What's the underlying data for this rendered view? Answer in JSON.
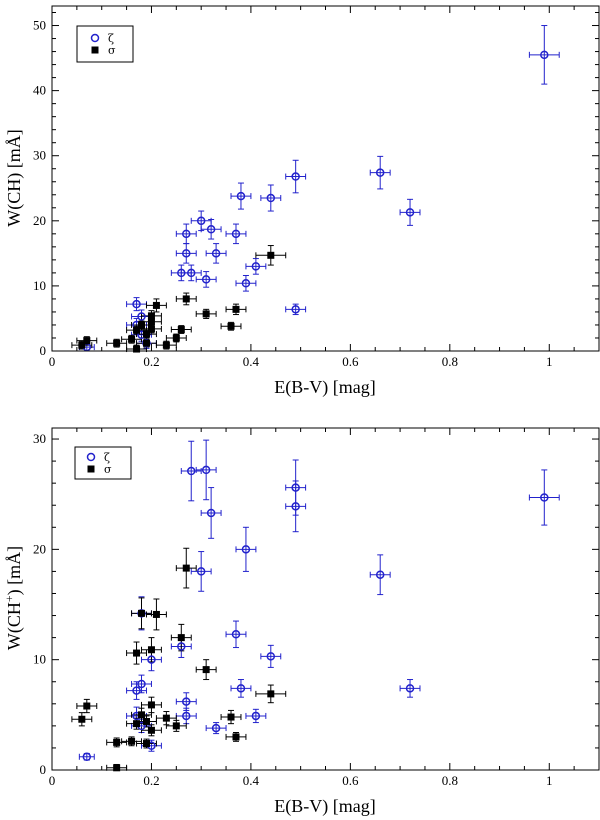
{
  "chart_data": [
    {
      "type": "scatter",
      "xlabel": "E(B-V) [mag]",
      "ylabel_main": "W(CH) [m",
      "ylabel_unit": "Å",
      "ylabel_sup": "",
      "ylabel_tail": "]",
      "xlim": [
        0,
        1.1
      ],
      "ylim": [
        0,
        53
      ],
      "xticks": [
        0,
        0.2,
        0.4,
        0.6,
        0.8,
        1.0
      ],
      "xtick_labels": [
        "0",
        "0.2",
        "0.4",
        "0.6",
        "0.8",
        "1"
      ],
      "yticks": [
        0,
        10,
        20,
        30,
        40,
        50
      ],
      "ytick_labels": [
        "0",
        "10",
        "20",
        "30",
        "40",
        "50"
      ],
      "legend_position": "top-left",
      "series": [
        {
          "name": "ζ",
          "marker": "open-circle",
          "color": "#2222cc",
          "points": [
            {
              "x": 0.07,
              "y": 0.6,
              "xerr": 0.015,
              "yerr": 0.6
            },
            {
              "x": 0.17,
              "y": 7.2,
              "xerr": 0.02,
              "yerr": 1.0
            },
            {
              "x": 0.17,
              "y": 4.0,
              "xerr": 0.02,
              "yerr": 1.0
            },
            {
              "x": 0.18,
              "y": 5.3,
              "xerr": 0.02,
              "yerr": 1.0
            },
            {
              "x": 0.18,
              "y": 2.5,
              "xerr": 0.02,
              "yerr": 1.0
            },
            {
              "x": 0.19,
              "y": 1.2,
              "xerr": 0.02,
              "yerr": 0.8
            },
            {
              "x": 0.26,
              "y": 12.0,
              "xerr": 0.02,
              "yerr": 1.2
            },
            {
              "x": 0.27,
              "y": 18.0,
              "xerr": 0.02,
              "yerr": 1.5
            },
            {
              "x": 0.27,
              "y": 15.0,
              "xerr": 0.02,
              "yerr": 1.5
            },
            {
              "x": 0.28,
              "y": 12.0,
              "xerr": 0.02,
              "yerr": 1.2
            },
            {
              "x": 0.3,
              "y": 20.0,
              "xerr": 0.02,
              "yerr": 1.5
            },
            {
              "x": 0.31,
              "y": 11.0,
              "xerr": 0.02,
              "yerr": 1.2
            },
            {
              "x": 0.32,
              "y": 18.7,
              "xerr": 0.02,
              "yerr": 1.5
            },
            {
              "x": 0.33,
              "y": 15.0,
              "xerr": 0.02,
              "yerr": 1.5
            },
            {
              "x": 0.37,
              "y": 18.0,
              "xerr": 0.02,
              "yerr": 1.5
            },
            {
              "x": 0.38,
              "y": 23.8,
              "xerr": 0.02,
              "yerr": 2.0
            },
            {
              "x": 0.39,
              "y": 10.4,
              "xerr": 0.02,
              "yerr": 1.2
            },
            {
              "x": 0.41,
              "y": 13.0,
              "xerr": 0.02,
              "yerr": 1.2
            },
            {
              "x": 0.44,
              "y": 23.5,
              "xerr": 0.02,
              "yerr": 2.0
            },
            {
              "x": 0.49,
              "y": 26.8,
              "xerr": 0.02,
              "yerr": 2.5
            },
            {
              "x": 0.49,
              "y": 6.4,
              "xerr": 0.02,
              "yerr": 0.8
            },
            {
              "x": 0.66,
              "y": 27.4,
              "xerr": 0.02,
              "yerr": 2.5
            },
            {
              "x": 0.72,
              "y": 21.3,
              "xerr": 0.02,
              "yerr": 2.0
            },
            {
              "x": 0.99,
              "y": 45.5,
              "xerr": 0.03,
              "yerr": 4.5
            }
          ]
        },
        {
          "name": "σ",
          "marker": "filled-square",
          "color": "#000000",
          "points": [
            {
              "x": 0.06,
              "y": 0.9,
              "xerr": 0.02,
              "yerr": 0.6
            },
            {
              "x": 0.07,
              "y": 1.6,
              "xerr": 0.02,
              "yerr": 0.6
            },
            {
              "x": 0.13,
              "y": 1.2,
              "xerr": 0.02,
              "yerr": 0.6
            },
            {
              "x": 0.16,
              "y": 1.8,
              "xerr": 0.02,
              "yerr": 0.6
            },
            {
              "x": 0.17,
              "y": 0.3,
              "xerr": 0.02,
              "yerr": 0.6
            },
            {
              "x": 0.17,
              "y": 3.2,
              "xerr": 0.02,
              "yerr": 0.6
            },
            {
              "x": 0.18,
              "y": 4.0,
              "xerr": 0.02,
              "yerr": 0.6
            },
            {
              "x": 0.19,
              "y": 2.6,
              "xerr": 0.02,
              "yerr": 0.6
            },
            {
              "x": 0.19,
              "y": 1.2,
              "xerr": 0.02,
              "yerr": 0.6
            },
            {
              "x": 0.2,
              "y": 5.4,
              "xerr": 0.02,
              "yerr": 0.8
            },
            {
              "x": 0.2,
              "y": 4.5,
              "xerr": 0.02,
              "yerr": 0.7
            },
            {
              "x": 0.2,
              "y": 3.4,
              "xerr": 0.02,
              "yerr": 0.6
            },
            {
              "x": 0.21,
              "y": 7.0,
              "xerr": 0.02,
              "yerr": 1.0
            },
            {
              "x": 0.23,
              "y": 0.9,
              "xerr": 0.02,
              "yerr": 0.6
            },
            {
              "x": 0.25,
              "y": 2.0,
              "xerr": 0.02,
              "yerr": 0.6
            },
            {
              "x": 0.26,
              "y": 3.3,
              "xerr": 0.02,
              "yerr": 0.6
            },
            {
              "x": 0.27,
              "y": 8.0,
              "xerr": 0.02,
              "yerr": 0.9
            },
            {
              "x": 0.31,
              "y": 5.7,
              "xerr": 0.02,
              "yerr": 0.7
            },
            {
              "x": 0.36,
              "y": 3.8,
              "xerr": 0.02,
              "yerr": 0.6
            },
            {
              "x": 0.37,
              "y": 6.4,
              "xerr": 0.02,
              "yerr": 0.8
            },
            {
              "x": 0.44,
              "y": 14.7,
              "xerr": 0.03,
              "yerr": 1.5
            }
          ]
        }
      ]
    },
    {
      "type": "scatter",
      "xlabel": "E(B-V) [mag]",
      "ylabel_main": "W(CH",
      "ylabel_unit": "Å",
      "ylabel_sup": "+",
      "ylabel_tail": ") [m",
      "ylabel_end": "]",
      "xlim": [
        0,
        1.1
      ],
      "ylim": [
        0,
        31
      ],
      "xticks": [
        0,
        0.2,
        0.4,
        0.6,
        0.8,
        1.0
      ],
      "xtick_labels": [
        "0",
        "0.2",
        "0.4",
        "0.6",
        "0.8",
        "1"
      ],
      "yticks": [
        0,
        10,
        20,
        30
      ],
      "ytick_labels": [
        "0",
        "10",
        "20",
        "30"
      ],
      "legend_position": "top-left",
      "series": [
        {
          "name": "ζ",
          "marker": "open-circle",
          "color": "#2222cc",
          "points": [
            {
              "x": 0.07,
              "y": 1.2,
              "xerr": 0.015,
              "yerr": 0.3
            },
            {
              "x": 0.17,
              "y": 4.9,
              "xerr": 0.02,
              "yerr": 0.8
            },
            {
              "x": 0.17,
              "y": 7.2,
              "xerr": 0.02,
              "yerr": 0.8
            },
            {
              "x": 0.18,
              "y": 14.2,
              "xerr": 0.02,
              "yerr": 1.5
            },
            {
              "x": 0.18,
              "y": 7.8,
              "xerr": 0.02,
              "yerr": 0.8
            },
            {
              "x": 0.18,
              "y": 4.0,
              "xerr": 0.02,
              "yerr": 0.6
            },
            {
              "x": 0.2,
              "y": 10.0,
              "xerr": 0.02,
              "yerr": 1.0
            },
            {
              "x": 0.2,
              "y": 2.2,
              "xerr": 0.02,
              "yerr": 0.5
            },
            {
              "x": 0.26,
              "y": 11.2,
              "xerr": 0.02,
              "yerr": 1.0
            },
            {
              "x": 0.27,
              "y": 6.2,
              "xerr": 0.02,
              "yerr": 0.8
            },
            {
              "x": 0.27,
              "y": 4.9,
              "xerr": 0.02,
              "yerr": 0.7
            },
            {
              "x": 0.28,
              "y": 27.1,
              "xerr": 0.02,
              "yerr": 2.7
            },
            {
              "x": 0.3,
              "y": 18.0,
              "xerr": 0.02,
              "yerr": 1.8
            },
            {
              "x": 0.31,
              "y": 27.2,
              "xerr": 0.02,
              "yerr": 2.7
            },
            {
              "x": 0.32,
              "y": 23.3,
              "xerr": 0.02,
              "yerr": 2.3
            },
            {
              "x": 0.33,
              "y": 3.8,
              "xerr": 0.02,
              "yerr": 0.5
            },
            {
              "x": 0.37,
              "y": 12.3,
              "xerr": 0.02,
              "yerr": 1.2
            },
            {
              "x": 0.38,
              "y": 7.4,
              "xerr": 0.02,
              "yerr": 0.8
            },
            {
              "x": 0.39,
              "y": 20.0,
              "xerr": 0.02,
              "yerr": 2.0
            },
            {
              "x": 0.41,
              "y": 4.9,
              "xerr": 0.02,
              "yerr": 0.6
            },
            {
              "x": 0.44,
              "y": 10.3,
              "xerr": 0.02,
              "yerr": 1.0
            },
            {
              "x": 0.49,
              "y": 25.6,
              "xerr": 0.02,
              "yerr": 2.5
            },
            {
              "x": 0.49,
              "y": 23.9,
              "xerr": 0.02,
              "yerr": 2.3
            },
            {
              "x": 0.66,
              "y": 17.7,
              "xerr": 0.02,
              "yerr": 1.8
            },
            {
              "x": 0.72,
              "y": 7.4,
              "xerr": 0.02,
              "yerr": 0.8
            },
            {
              "x": 0.99,
              "y": 24.7,
              "xerr": 0.03,
              "yerr": 2.5
            }
          ]
        },
        {
          "name": "σ",
          "marker": "filled-square",
          "color": "#000000",
          "points": [
            {
              "x": 0.06,
              "y": 4.6,
              "xerr": 0.02,
              "yerr": 0.6
            },
            {
              "x": 0.07,
              "y": 5.8,
              "xerr": 0.02,
              "yerr": 0.6
            },
            {
              "x": 0.13,
              "y": 2.5,
              "xerr": 0.02,
              "yerr": 0.4
            },
            {
              "x": 0.13,
              "y": 0.2,
              "xerr": 0.02,
              "yerr": 0.3
            },
            {
              "x": 0.16,
              "y": 2.6,
              "xerr": 0.02,
              "yerr": 0.4
            },
            {
              "x": 0.17,
              "y": 10.6,
              "xerr": 0.02,
              "yerr": 1.0
            },
            {
              "x": 0.17,
              "y": 4.2,
              "xerr": 0.02,
              "yerr": 0.5
            },
            {
              "x": 0.18,
              "y": 14.2,
              "xerr": 0.02,
              "yerr": 1.4
            },
            {
              "x": 0.18,
              "y": 5.0,
              "xerr": 0.02,
              "yerr": 0.6
            },
            {
              "x": 0.19,
              "y": 4.4,
              "xerr": 0.02,
              "yerr": 0.5
            },
            {
              "x": 0.19,
              "y": 2.4,
              "xerr": 0.02,
              "yerr": 0.4
            },
            {
              "x": 0.2,
              "y": 10.9,
              "xerr": 0.02,
              "yerr": 1.1
            },
            {
              "x": 0.2,
              "y": 5.9,
              "xerr": 0.02,
              "yerr": 0.7
            },
            {
              "x": 0.2,
              "y": 3.6,
              "xerr": 0.02,
              "yerr": 0.5
            },
            {
              "x": 0.21,
              "y": 14.1,
              "xerr": 0.02,
              "yerr": 1.4
            },
            {
              "x": 0.23,
              "y": 4.7,
              "xerr": 0.02,
              "yerr": 0.6
            },
            {
              "x": 0.25,
              "y": 4.0,
              "xerr": 0.02,
              "yerr": 0.5
            },
            {
              "x": 0.26,
              "y": 12.0,
              "xerr": 0.02,
              "yerr": 1.2
            },
            {
              "x": 0.27,
              "y": 18.3,
              "xerr": 0.02,
              "yerr": 1.8
            },
            {
              "x": 0.31,
              "y": 9.1,
              "xerr": 0.02,
              "yerr": 0.9
            },
            {
              "x": 0.36,
              "y": 4.8,
              "xerr": 0.02,
              "yerr": 0.6
            },
            {
              "x": 0.37,
              "y": 3.0,
              "xerr": 0.02,
              "yerr": 0.4
            },
            {
              "x": 0.44,
              "y": 6.9,
              "xerr": 0.03,
              "yerr": 0.8
            }
          ]
        }
      ]
    }
  ]
}
